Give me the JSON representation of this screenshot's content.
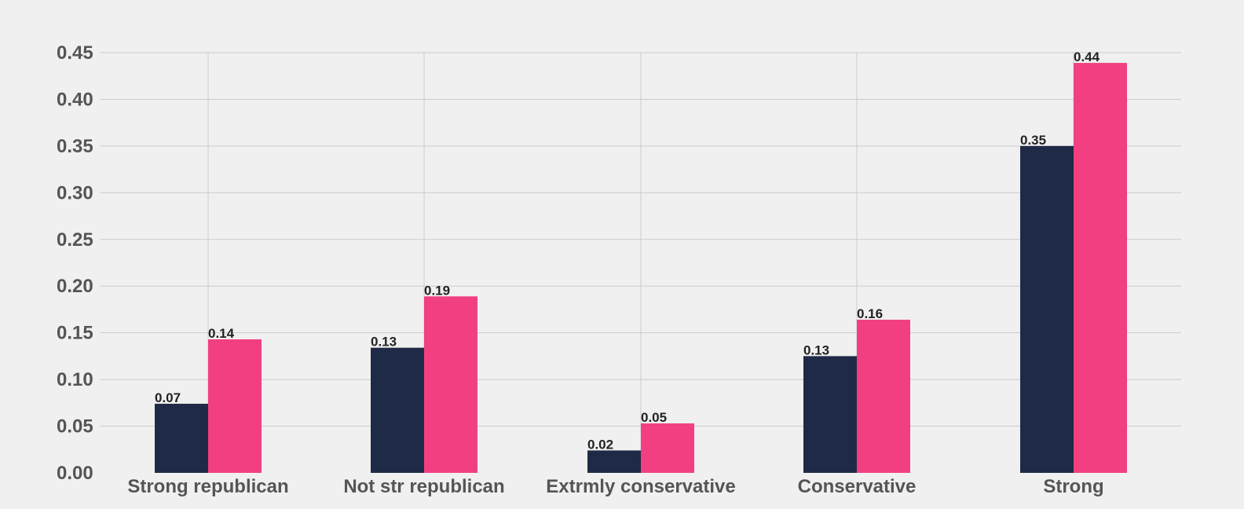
{
  "chart_data": {
    "type": "bar",
    "title": "",
    "xlabel": "",
    "ylabel": "",
    "categories": [
      "Strong republican",
      "Not str republican",
      "Extrmly conservative",
      "Conservative",
      "Strong"
    ],
    "series": [
      {
        "values": [
          0.074,
          0.134,
          0.024,
          0.125,
          0.35
        ],
        "labels": [
          "0.07",
          "0.13",
          "0.02",
          "0.13",
          "0.35"
        ],
        "color": "#1f2b46"
      },
      {
        "values": [
          0.143,
          0.189,
          0.053,
          0.164,
          0.439
        ],
        "labels": [
          "0.14",
          "0.19",
          "0.05",
          "0.16",
          "0.44"
        ],
        "color": "#f23f82"
      }
    ],
    "ylim": [
      0,
      0.45
    ],
    "yticks": [
      "0.00",
      "0.05",
      "0.10",
      "0.15",
      "0.20",
      "0.25",
      "0.30",
      "0.35",
      "0.40",
      "0.45"
    ],
    "grid": true,
    "legend": "none",
    "background": "#f0f0f0"
  }
}
